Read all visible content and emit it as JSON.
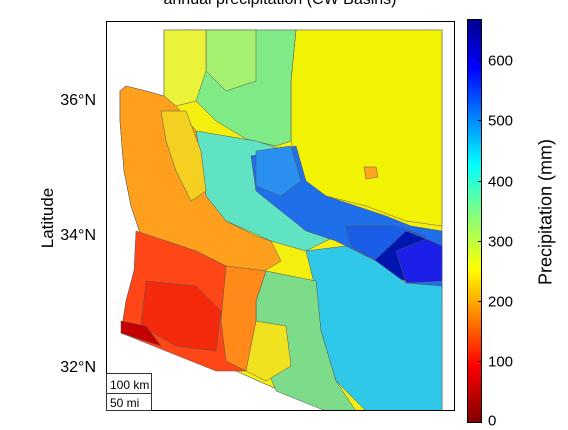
{
  "title": "annual precipitation (CW Basins)",
  "axis": {
    "ylabel": "Latitude",
    "yticks": [
      "36°N",
      "34°N",
      "32°N"
    ]
  },
  "scalebar": {
    "km_label": "100 km",
    "mi_label": "50 mi"
  },
  "colorbar": {
    "label": "Precipitation (mm)",
    "ticks": [
      "600",
      "500",
      "400",
      "300",
      "200",
      "100",
      "0"
    ],
    "colors": [
      "#800000",
      "#ff0000",
      "#ff8000",
      "#ffff00",
      "#80ff80",
      "#00ffff",
      "#0080ff",
      "#0000ff",
      "#00008f"
    ]
  }
}
